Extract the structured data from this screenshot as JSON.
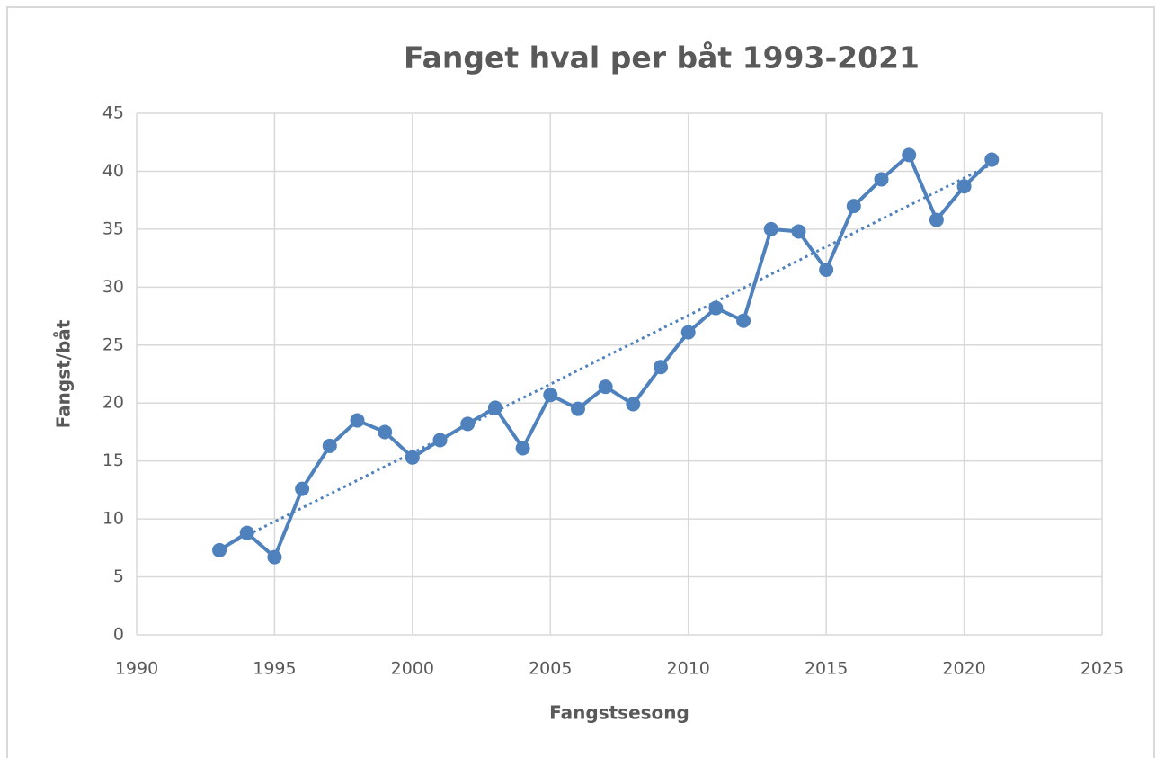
{
  "chart_data": {
    "type": "line",
    "title": "Fanget hval per båt 1993-2021",
    "xlabel": "Fangstsesong",
    "ylabel": "Fangst/båt",
    "x": [
      1993,
      1994,
      1995,
      1996,
      1997,
      1998,
      1999,
      2000,
      2001,
      2002,
      2003,
      2004,
      2005,
      2006,
      2007,
      2008,
      2009,
      2010,
      2011,
      2012,
      2013,
      2014,
      2015,
      2016,
      2017,
      2018,
      2019,
      2020,
      2021
    ],
    "series": [
      {
        "color": "#4f81bd",
        "values": [
          7.3,
          8.8,
          6.7,
          12.6,
          16.3,
          18.5,
          17.5,
          15.3,
          16.8,
          18.2,
          19.6,
          16.1,
          20.7,
          19.5,
          21.4,
          19.9,
          23.1,
          26.1,
          28.2,
          27.1,
          35.0,
          34.8,
          31.5,
          37.0,
          39.3,
          41.4,
          35.8,
          38.7,
          41.0
        ]
      }
    ],
    "trendline": {
      "x": [
        1993,
        2021
      ],
      "values": [
        7.4,
        40.6
      ],
      "color": "#4f81bd",
      "style": "dotted"
    },
    "xlim": [
      1990,
      2025
    ],
    "xticks": [
      1990,
      1995,
      2000,
      2005,
      2010,
      2015,
      2020,
      2025
    ],
    "ylim": [
      0,
      45
    ],
    "yticks": [
      0,
      5,
      10,
      15,
      20,
      25,
      30,
      35,
      40,
      45
    ],
    "grid": true
  }
}
